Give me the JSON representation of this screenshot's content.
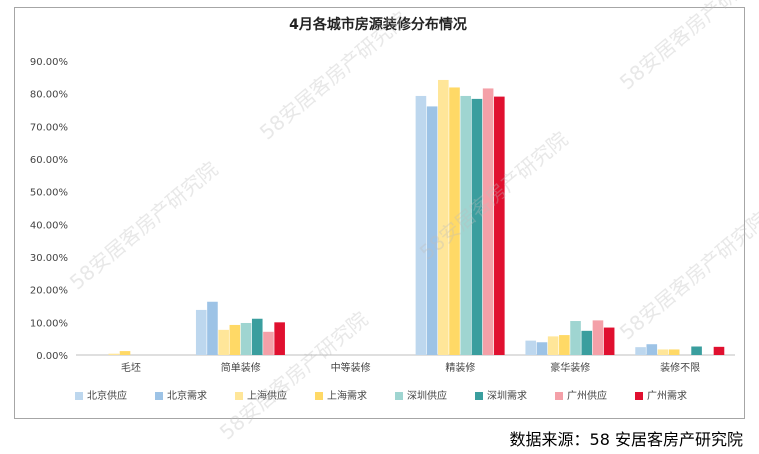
{
  "chart_data": {
    "type": "bar",
    "title": "4月各城市房源装修分布情况",
    "categories": [
      "毛坯",
      "简单装修",
      "中等装修",
      "精装修",
      "豪华装修",
      "装修不限"
    ],
    "ylim": [
      0,
      90
    ],
    "yticks": [
      "0.00%",
      "10.00%",
      "20.00%",
      "30.00%",
      "40.00%",
      "50.00%",
      "60.00%",
      "70.00%",
      "80.00%",
      "90.00%"
    ],
    "grid": false,
    "legend_position": "bottom",
    "series": [
      {
        "name": "北京供应",
        "color": "#bdd7ee",
        "values": [
          0,
          13.8,
          0,
          79.3,
          4.4,
          2.4
        ]
      },
      {
        "name": "北京需求",
        "color": "#9dc3e6",
        "values": [
          0,
          16.3,
          0,
          76.1,
          3.9,
          3.3
        ]
      },
      {
        "name": "上海供应",
        "color": "#ffe699",
        "values": [
          0.4,
          7.7,
          0,
          84.2,
          5.7,
          1.7
        ]
      },
      {
        "name": "上海需求",
        "color": "#ffd966",
        "values": [
          1.2,
          9.2,
          0,
          81.9,
          6.1,
          1.7
        ]
      },
      {
        "name": "深圳供应",
        "color": "#9fd5d1",
        "values": [
          0,
          9.8,
          0,
          79.3,
          10.4,
          0
        ]
      },
      {
        "name": "深圳需求",
        "color": "#3a9e9e",
        "values": [
          0,
          11.1,
          0,
          78.4,
          7.4,
          2.6
        ]
      },
      {
        "name": "广州供应",
        "color": "#f4a0a8",
        "values": [
          0,
          7.1,
          0,
          81.6,
          10.6,
          0
        ]
      },
      {
        "name": "广州需求",
        "color": "#e0102f",
        "values": [
          0,
          10,
          0,
          79.1,
          8.4,
          2.5
        ]
      }
    ]
  },
  "source": "数据来源：58 安居客房产研究院",
  "watermark_text": "58安居客房产研究院"
}
